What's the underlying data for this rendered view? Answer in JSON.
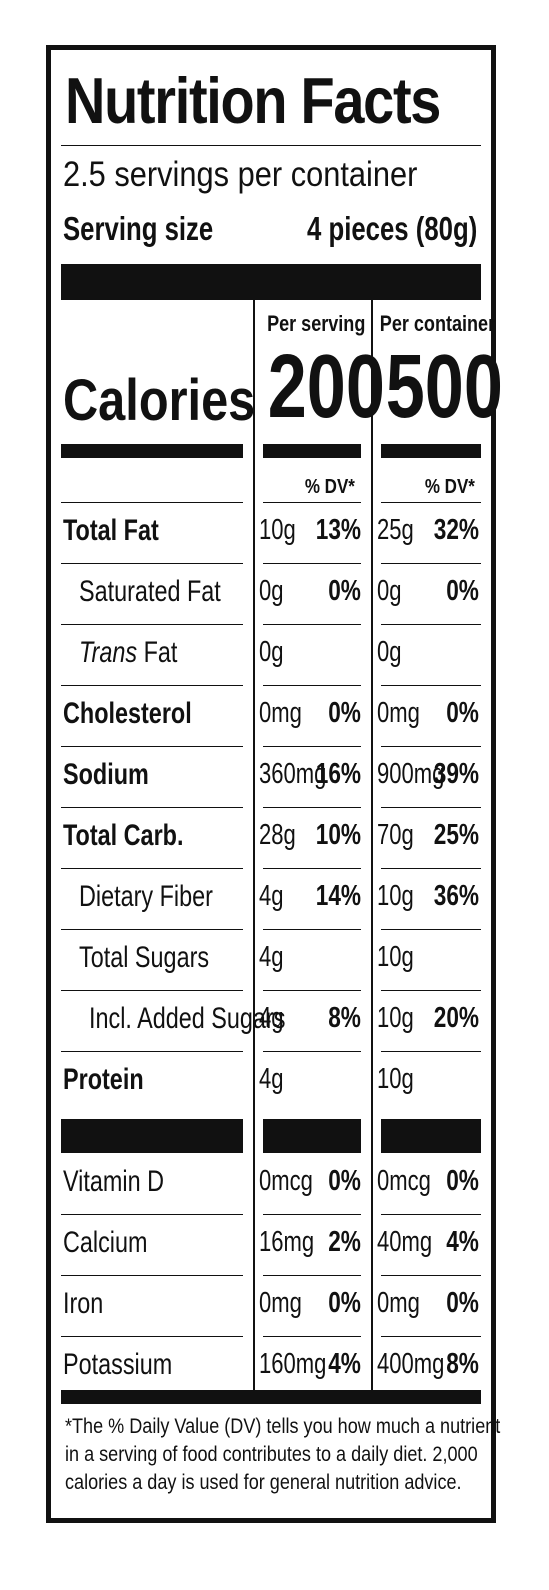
{
  "title": "Nutrition Facts",
  "servings_per_container": "2.5 servings per container",
  "serving_size_label": "Serving size",
  "serving_size_value": "4 pieces (80g)",
  "columns": {
    "per_serving": "Per serving",
    "per_container": "Per container"
  },
  "calories": {
    "label": "Calories",
    "per_serving": "200",
    "per_container": "500"
  },
  "dv_header": "% DV*",
  "nutrients": [
    {
      "name": "Total Fat",
      "serving_amount": "10g",
      "serving_dv": "13%",
      "container_amount": "25g",
      "container_dv": "32%"
    },
    {
      "name": "Saturated Fat",
      "serving_amount": "0g",
      "serving_dv": "0%",
      "container_amount": "0g",
      "container_dv": "0%"
    },
    {
      "name_italic": "Trans",
      "name": " Fat",
      "serving_amount": "0g",
      "serving_dv": "",
      "container_amount": "0g",
      "container_dv": ""
    },
    {
      "name": "Cholesterol",
      "serving_amount": "0mg",
      "serving_dv": "0%",
      "container_amount": "0mg",
      "container_dv": "0%"
    },
    {
      "name": "Sodium",
      "serving_amount": "360mg",
      "serving_dv": "16%",
      "container_amount": "900mg",
      "container_dv": "39%"
    },
    {
      "name": "Total Carb.",
      "serving_amount": "28g",
      "serving_dv": "10%",
      "container_amount": "70g",
      "container_dv": "25%"
    },
    {
      "name": "Dietary Fiber",
      "serving_amount": "4g",
      "serving_dv": "14%",
      "container_amount": "10g",
      "container_dv": "36%"
    },
    {
      "name": "Total Sugars",
      "serving_amount": "4g",
      "serving_dv": "",
      "container_amount": "10g",
      "container_dv": ""
    },
    {
      "name": "Incl. Added Sugars",
      "serving_amount": "4g",
      "serving_dv": "8%",
      "container_amount": "10g",
      "container_dv": "20%"
    },
    {
      "name": "Protein",
      "serving_amount": "4g",
      "serving_dv": "",
      "container_amount": "10g",
      "container_dv": ""
    }
  ],
  "vitamins": [
    {
      "name": "Vitamin D",
      "serving_amount": "0mcg",
      "serving_dv": "0%",
      "container_amount": "0mcg",
      "container_dv": "0%"
    },
    {
      "name": "Calcium",
      "serving_amount": "16mg",
      "serving_dv": "2%",
      "container_amount": "40mg",
      "container_dv": "4%"
    },
    {
      "name": "Iron",
      "serving_amount": "0mg",
      "serving_dv": "0%",
      "container_amount": "0mg",
      "container_dv": "0%"
    },
    {
      "name": "Potassium",
      "serving_amount": "160mg",
      "serving_dv": "4%",
      "container_amount": "400mg",
      "container_dv": "8%"
    }
  ],
  "footnote": [
    "*The % Daily Value (DV) tells you how much a nutrient",
    "in a serving of food contributes to a daily diet. 2,000",
    "calories a day is used for general nutrition advice."
  ]
}
